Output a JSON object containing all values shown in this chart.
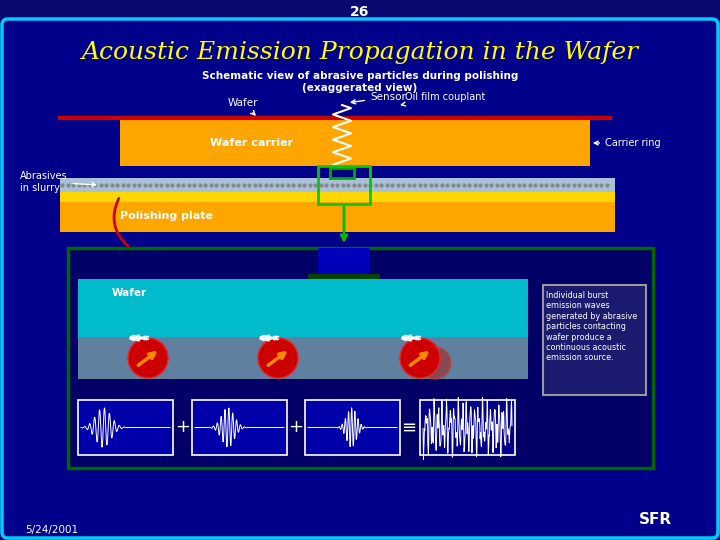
{
  "slide_number": "26",
  "title": "Acoustic Emission Propagation in the Wafer",
  "subtitle": "Schematic view of abrasive particles during polishing\n(exaggerated view)",
  "date": "5/24/2001",
  "bg_color": "#00008B",
  "outer_bg": "#090970",
  "title_color": "#FFFF00",
  "slide_num_color": "#FFFFFF",
  "subtitle_color": "#FFFFFF",
  "cyan_border": "#00CCFF",
  "green_border": "#006600",
  "orange_color": "#FFA500",
  "wafer_carrier_label": "Wafer carrier",
  "polishing_plate_label": "Polishing plate",
  "abrasives_label": "Abrasives\nin slurry",
  "carrier_ring_label": "Carrier ring",
  "wafer_label_top": "Wafer",
  "sensor_label": "Sensor",
  "oil_film_label": "Oil film couplant",
  "wafer_label_bottom": "Wafer",
  "info_text": "Individual burst\nemission waves\ngenerated by abrasive\nparticles contacting\nwafer produce a\ncontinuous acoustic\nemission source."
}
